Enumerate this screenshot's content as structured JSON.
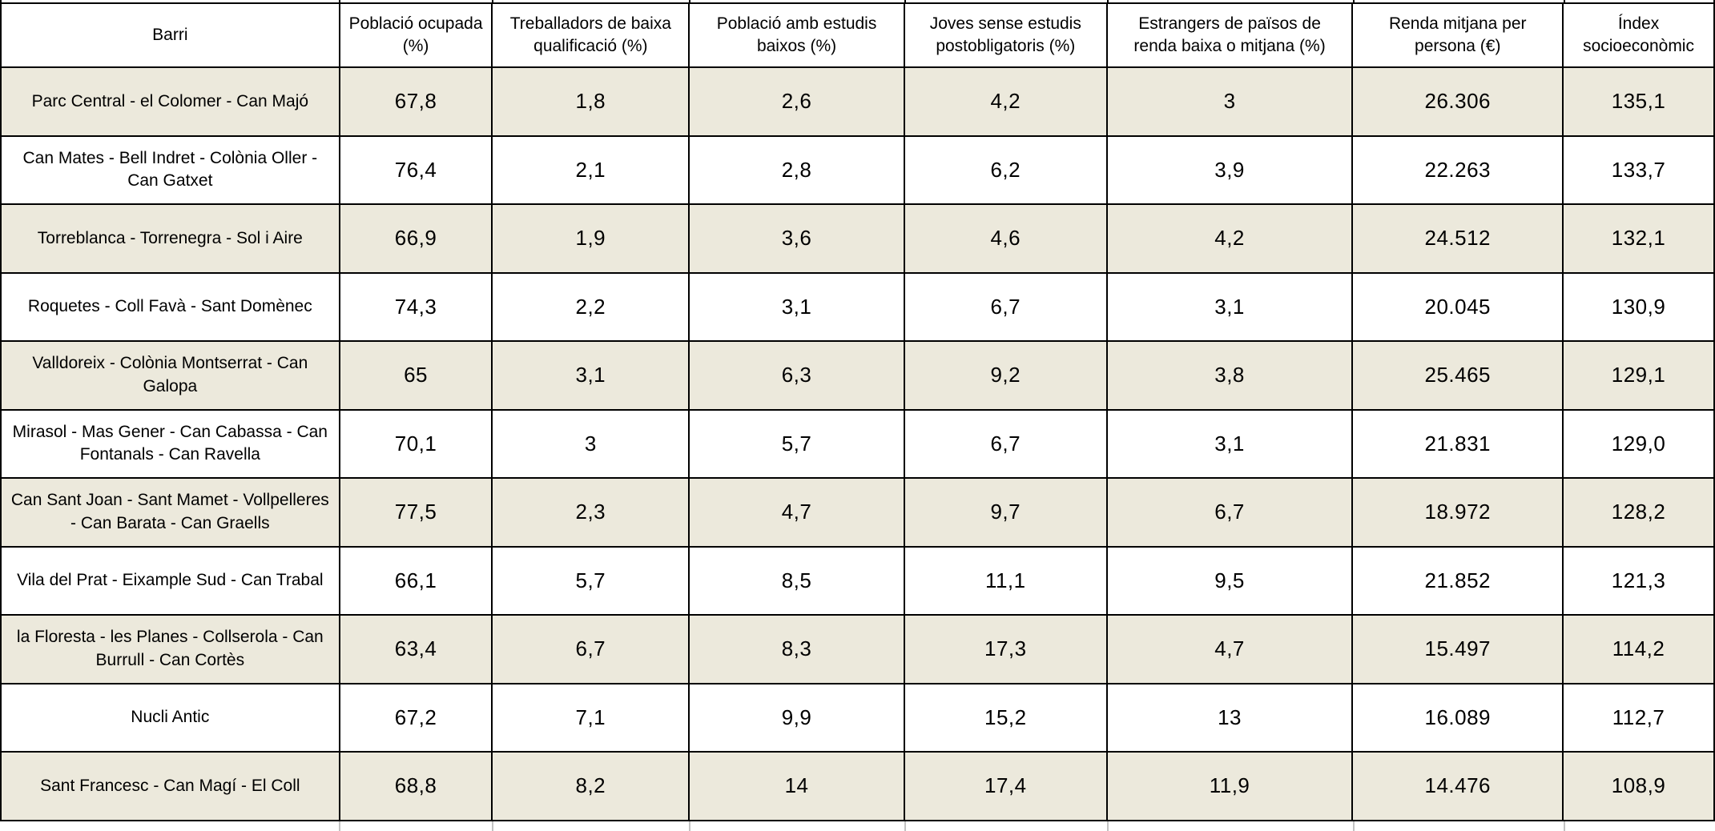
{
  "colors": {
    "shaded_row_background": "#ece9dc",
    "plain_row_background": "#ffffff",
    "border": "#000000",
    "text": "#000000"
  },
  "table": {
    "columns": [
      "Barri",
      "Població ocupada (%)",
      "Treballadors de baixa qualificació (%)",
      "Població amb estudis baixos (%)",
      "Joves sense estudis postobligatoris (%)",
      "Estrangers de països de renda baixa o mitjana (%)",
      "Renda mitjana per persona (€)",
      "Índex socioeconòmic"
    ],
    "rows": [
      {
        "barri": "Parc Central - el Colomer - Can Majó",
        "values": [
          "67,8",
          "1,8",
          "2,6",
          "4,2",
          "3",
          "26.306",
          "135,1"
        ],
        "shaded": true
      },
      {
        "barri": "Can Mates - Bell Indret - Colònia Oller - Can Gatxet",
        "values": [
          "76,4",
          "2,1",
          "2,8",
          "6,2",
          "3,9",
          "22.263",
          "133,7"
        ],
        "shaded": false
      },
      {
        "barri": "Torreblanca - Torrenegra - Sol i Aire",
        "values": [
          "66,9",
          "1,9",
          "3,6",
          "4,6",
          "4,2",
          "24.512",
          "132,1"
        ],
        "shaded": true
      },
      {
        "barri": "Roquetes - Coll Favà - Sant Domènec",
        "values": [
          "74,3",
          "2,2",
          "3,1",
          "6,7",
          "3,1",
          "20.045",
          "130,9"
        ],
        "shaded": false
      },
      {
        "barri": "Valldoreix - Colònia Montserrat - Can Galopa",
        "values": [
          "65",
          "3,1",
          "6,3",
          "9,2",
          "3,8",
          "25.465",
          "129,1"
        ],
        "shaded": true
      },
      {
        "barri": "Mirasol - Mas Gener - Can Cabassa - Can Fontanals - Can Ravella",
        "values": [
          "70,1",
          "3",
          "5,7",
          "6,7",
          "3,1",
          "21.831",
          "129,0"
        ],
        "shaded": false
      },
      {
        "barri": "Can Sant Joan - Sant Mamet - Vollpelleres - Can Barata - Can Graells",
        "values": [
          "77,5",
          "2,3",
          "4,7",
          "9,7",
          "6,7",
          "18.972",
          "128,2"
        ],
        "shaded": true
      },
      {
        "barri": "Vila del Prat - Eixample Sud - Can Trabal",
        "values": [
          "66,1",
          "5,7",
          "8,5",
          "11,1",
          "9,5",
          "21.852",
          "121,3"
        ],
        "shaded": false
      },
      {
        "barri": "la Floresta - les Planes - Collserola - Can Burrull - Can Cortès",
        "values": [
          "63,4",
          "6,7",
          "8,3",
          "17,3",
          "4,7",
          "15.497",
          "114,2"
        ],
        "shaded": true
      },
      {
        "barri": "Nucli Antic",
        "values": [
          "67,2",
          "7,1",
          "9,9",
          "15,2",
          "13",
          "16.089",
          "112,7"
        ],
        "shaded": false
      },
      {
        "barri": "Sant Francesc - Can Magí - El Coll",
        "values": [
          "68,8",
          "8,2",
          "14",
          "17,4",
          "11,9",
          "14.476",
          "108,9"
        ],
        "shaded": true
      }
    ]
  },
  "chart_data": {
    "type": "table",
    "title": "",
    "columns": [
      "Barri",
      "Població ocupada (%)",
      "Treballadors de baixa qualificació (%)",
      "Població amb estudis baixos (%)",
      "Joves sense estudis postobligatoris (%)",
      "Estrangers de països de renda baixa o mitjana (%)",
      "Renda mitjana per persona (€)",
      "Índex socioeconòmic"
    ],
    "rows": [
      [
        "Parc Central - el Colomer - Can Majó",
        67.8,
        1.8,
        2.6,
        4.2,
        3,
        26306,
        135.1
      ],
      [
        "Can Mates - Bell Indret - Colònia Oller - Can Gatxet",
        76.4,
        2.1,
        2.8,
        6.2,
        3.9,
        22263,
        133.7
      ],
      [
        "Torreblanca - Torrenegra - Sol i Aire",
        66.9,
        1.9,
        3.6,
        4.6,
        4.2,
        24512,
        132.1
      ],
      [
        "Roquetes - Coll Favà - Sant Domènec",
        74.3,
        2.2,
        3.1,
        6.7,
        3.1,
        20045,
        130.9
      ],
      [
        "Valldoreix - Colònia Montserrat - Can Galopa",
        65,
        3.1,
        6.3,
        9.2,
        3.8,
        25465,
        129.1
      ],
      [
        "Mirasol - Mas Gener - Can Cabassa - Can Fontanals - Can Ravella",
        70.1,
        3,
        5.7,
        6.7,
        3.1,
        21831,
        129.0
      ],
      [
        "Can Sant Joan - Sant Mamet - Vollpelleres - Can Barata - Can Graells",
        77.5,
        2.3,
        4.7,
        9.7,
        6.7,
        18972,
        128.2
      ],
      [
        "Vila del Prat - Eixample Sud - Can Trabal",
        66.1,
        5.7,
        8.5,
        11.1,
        9.5,
        21852,
        121.3
      ],
      [
        "la Floresta - les Planes - Collserola - Can Burrull - Can Cortès",
        63.4,
        6.7,
        8.3,
        17.3,
        4.7,
        15497,
        114.2
      ],
      [
        "Nucli Antic",
        67.2,
        7.1,
        9.9,
        15.2,
        13,
        16089,
        112.7
      ],
      [
        "Sant Francesc - Can Magí - El Coll",
        68.8,
        8.2,
        14,
        17.4,
        11.9,
        14476,
        108.9
      ]
    ]
  }
}
